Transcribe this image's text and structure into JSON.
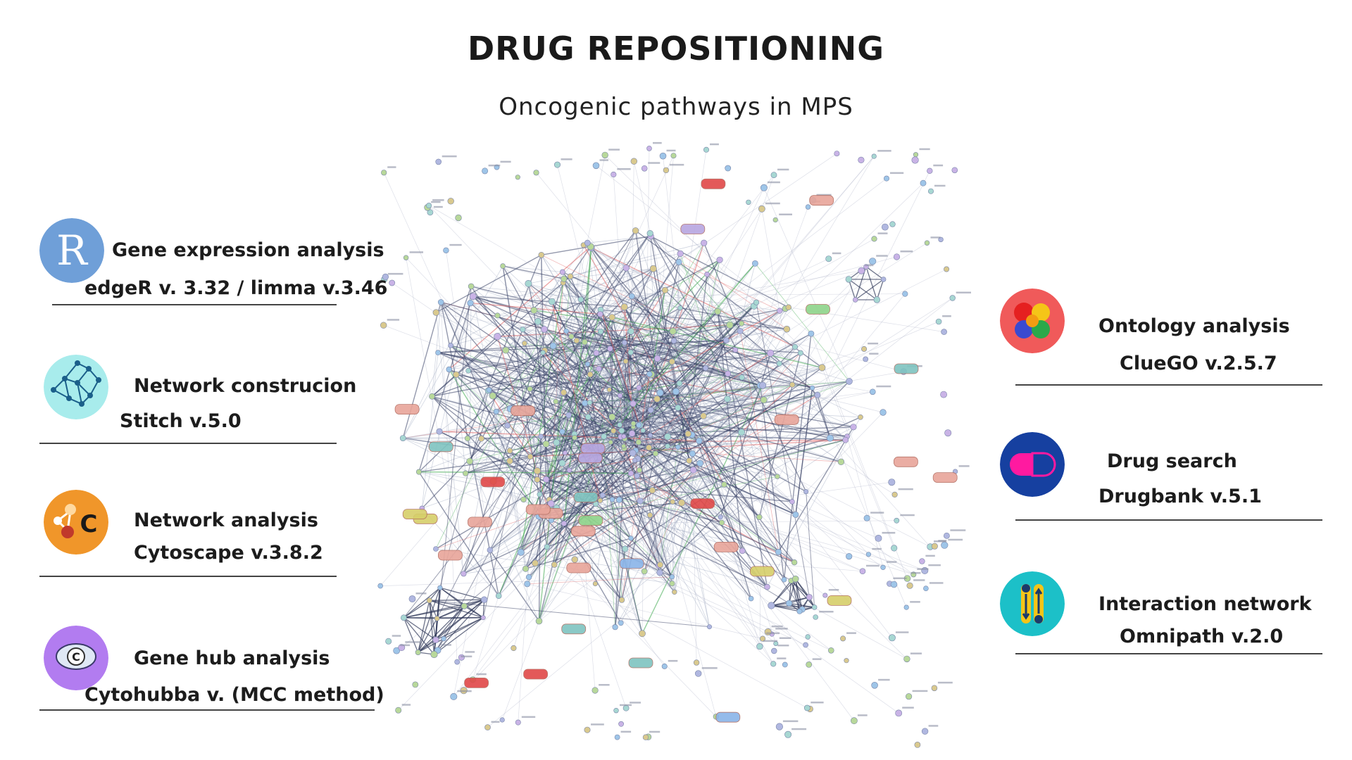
{
  "title": "DRUG REPOSITIONING",
  "subtitle": "Oncogenic pathways in MPS",
  "network_image": "protein-protein interaction network",
  "left_tools": [
    {
      "name": "Gene expression analysis",
      "version": "edgeR v. 3.32 / limma v.3.46",
      "icon": "r-logo-icon",
      "color": "#6f9fd8"
    },
    {
      "name": "Network construcion",
      "version": "Stitch v.5.0",
      "icon": "network-graph-icon",
      "color": "#a8ecec"
    },
    {
      "name": "Network analysis",
      "version": "Cytoscape v.3.8.2",
      "icon": "cytoscape-logo-icon",
      "color": "#f0962a"
    },
    {
      "name": "Gene hub analysis",
      "version": "Cytohubba v. (MCC method)",
      "icon": "cytohubba-logo-icon",
      "color": "#b27cf0"
    }
  ],
  "right_tools": [
    {
      "name": "Ontology analysis",
      "version": "ClueGO v.2.5.7",
      "icon": "cluego-logo-icon",
      "color": "#f05a5a"
    },
    {
      "name": "Drug search",
      "version": "Drugbank v.5.1",
      "icon": "drug-capsule-icon",
      "color": "#1640a0"
    },
    {
      "name": "Interaction network",
      "version": "Omnipath v.2.0",
      "icon": "omnipath-logo-icon",
      "color": "#1cc0c8"
    }
  ]
}
